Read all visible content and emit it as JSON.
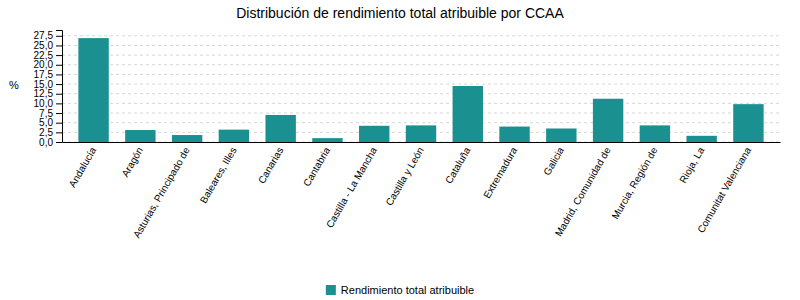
{
  "chart_data": {
    "type": "bar",
    "title": "Distribución de rendimiento total atribuible por CCAA",
    "ylabel": "%",
    "categories": [
      "Andalucía",
      "Aragón",
      "Asturias, Principado de",
      "Baleares, Illes",
      "Canarias",
      "Cantabria",
      "Castilla - La Mancha",
      "Castilla y León",
      "Cataluña",
      "Extremadura",
      "Galicia",
      "Madrid, Comunidad de",
      "Murcia, Región de",
      "Rioja, La",
      "Comunitat Valenciana"
    ],
    "series": [
      {
        "name": "Rendimiento total atribuible",
        "color": "#1a9090",
        "values": [
          26.9,
          3.1,
          1.8,
          3.2,
          7.0,
          1.0,
          4.2,
          4.3,
          14.5,
          4.0,
          3.5,
          11.2,
          4.3,
          1.6,
          9.8
        ]
      }
    ],
    "ylim": [
      0,
      29
    ],
    "yticks": [
      {
        "value": 0.0,
        "label": "0,0"
      },
      {
        "value": 2.5,
        "label": "2,5"
      },
      {
        "value": 5.0,
        "label": "5,0"
      },
      {
        "value": 7.5,
        "label": "7,5"
      },
      {
        "value": 10.0,
        "label": "10,0"
      },
      {
        "value": 12.5,
        "label": "12,5"
      },
      {
        "value": 15.0,
        "label": "15,0"
      },
      {
        "value": 17.5,
        "label": "17,5"
      },
      {
        "value": 20.0,
        "label": "20,0"
      },
      {
        "value": 22.5,
        "label": "22,5"
      },
      {
        "value": 25.0,
        "label": "25,0"
      },
      {
        "value": 27.5,
        "label": "27,5"
      }
    ],
    "grid": true,
    "legend": "bottom"
  }
}
